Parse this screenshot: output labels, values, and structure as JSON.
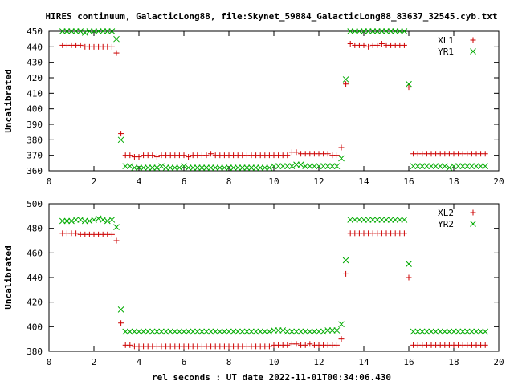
{
  "chart_data": [
    {
      "type": "scatter",
      "title": "HIRES continuum, GalacticLong88, file:Skynet_59884_GalacticLong88_83637_32545.cyb.txt",
      "ylabel": "Uncalibrated",
      "xlim": [
        0,
        20
      ],
      "ylim": [
        360,
        450
      ],
      "xticks": [
        0,
        2,
        4,
        6,
        8,
        10,
        12,
        14,
        16,
        18,
        20
      ],
      "yticks": [
        360,
        370,
        380,
        390,
        400,
        410,
        420,
        430,
        440,
        450
      ],
      "legend_position": "top-right",
      "grid": false,
      "series": [
        {
          "name": "XL1",
          "marker": "plus",
          "color": "#cc0000",
          "x": [
            0.6,
            0.8,
            1.0,
            1.2,
            1.4,
            1.6,
            1.8,
            2.0,
            2.2,
            2.4,
            2.6,
            2.8,
            3.0,
            3.2,
            3.4,
            3.6,
            3.8,
            4.0,
            4.2,
            4.4,
            4.6,
            4.8,
            5.0,
            5.2,
            5.4,
            5.6,
            5.8,
            6.0,
            6.2,
            6.4,
            6.6,
            6.8,
            7.0,
            7.2,
            7.4,
            7.6,
            7.8,
            8.0,
            8.2,
            8.4,
            8.6,
            8.8,
            9.0,
            9.2,
            9.4,
            9.6,
            9.8,
            10.0,
            10.2,
            10.4,
            10.6,
            10.8,
            11.0,
            11.2,
            11.4,
            11.6,
            11.8,
            12.0,
            12.2,
            12.4,
            12.6,
            12.8,
            13.0,
            13.2,
            13.4,
            13.6,
            13.8,
            14.0,
            14.2,
            14.4,
            14.6,
            14.8,
            15.0,
            15.2,
            15.4,
            15.6,
            15.8,
            16.0,
            16.2,
            16.4,
            16.6,
            16.8,
            17.0,
            17.2,
            17.4,
            17.6,
            17.8,
            18.0,
            18.2,
            18.4,
            18.6,
            18.8,
            19.0,
            19.2,
            19.4
          ],
          "y": [
            441,
            441,
            441,
            441,
            441,
            440,
            440,
            440,
            440,
            440,
            440,
            440,
            436,
            384,
            370,
            370,
            369,
            369,
            370,
            370,
            370,
            369,
            370,
            370,
            370,
            370,
            370,
            370,
            369,
            370,
            370,
            370,
            370,
            371,
            370,
            370,
            370,
            370,
            370,
            370,
            370,
            370,
            370,
            370,
            370,
            370,
            370,
            370,
            370,
            370,
            370,
            372,
            372,
            371,
            371,
            371,
            371,
            371,
            371,
            371,
            370,
            370,
            375,
            416,
            442,
            441,
            441,
            441,
            440,
            441,
            441,
            442,
            441,
            441,
            441,
            441,
            441,
            414,
            371,
            371,
            371,
            371,
            371,
            371,
            371,
            371,
            371,
            371,
            371,
            371,
            371,
            371,
            371,
            371,
            371
          ]
        },
        {
          "name": "YR1",
          "marker": "cross",
          "color": "#00aa00",
          "x": [
            0.6,
            0.8,
            1.0,
            1.2,
            1.4,
            1.6,
            1.8,
            2.0,
            2.2,
            2.4,
            2.6,
            2.8,
            3.0,
            3.2,
            3.4,
            3.6,
            3.8,
            4.0,
            4.2,
            4.4,
            4.6,
            4.8,
            5.0,
            5.2,
            5.4,
            5.6,
            5.8,
            6.0,
            6.2,
            6.4,
            6.6,
            6.8,
            7.0,
            7.2,
            7.4,
            7.6,
            7.8,
            8.0,
            8.2,
            8.4,
            8.6,
            8.8,
            9.0,
            9.2,
            9.4,
            9.6,
            9.8,
            10.0,
            10.2,
            10.4,
            10.6,
            10.8,
            11.0,
            11.2,
            11.4,
            11.6,
            11.8,
            12.0,
            12.2,
            12.4,
            12.6,
            12.8,
            13.0,
            13.2,
            13.4,
            13.6,
            13.8,
            14.0,
            14.2,
            14.4,
            14.6,
            14.8,
            15.0,
            15.2,
            15.4,
            15.6,
            15.8,
            16.0,
            16.2,
            16.4,
            16.6,
            16.8,
            17.0,
            17.2,
            17.4,
            17.6,
            17.8,
            18.0,
            18.2,
            18.4,
            18.6,
            18.8,
            19.0,
            19.2,
            19.4
          ],
          "y": [
            450,
            450,
            450,
            450,
            450,
            449,
            450,
            450,
            450,
            450,
            450,
            450,
            445,
            380,
            363,
            363,
            362,
            362,
            362,
            362,
            362,
            362,
            363,
            362,
            362,
            362,
            362,
            363,
            362,
            362,
            362,
            362,
            362,
            362,
            362,
            362,
            362,
            362,
            362,
            362,
            362,
            362,
            362,
            362,
            362,
            362,
            362,
            363,
            363,
            363,
            363,
            363,
            364,
            364,
            363,
            363,
            363,
            363,
            363,
            363,
            363,
            363,
            368,
            419,
            450,
            450,
            450,
            450,
            450,
            450,
            450,
            450,
            450,
            450,
            450,
            450,
            450,
            416,
            363,
            363,
            363,
            363,
            363,
            363,
            363,
            363,
            362,
            363,
            363,
            363,
            363,
            363,
            363,
            363,
            363
          ]
        }
      ]
    },
    {
      "type": "scatter",
      "ylabel": "Uncalibrated",
      "xlabel": "rel seconds : UT date 2022-11-01T00:34:06.430",
      "xlim": [
        0,
        20
      ],
      "ylim": [
        380,
        500
      ],
      "xticks": [
        0,
        2,
        4,
        6,
        8,
        10,
        12,
        14,
        16,
        18,
        20
      ],
      "yticks": [
        380,
        400,
        420,
        440,
        460,
        480,
        500
      ],
      "legend_position": "top-right",
      "grid": false,
      "series": [
        {
          "name": "XL2",
          "marker": "plus",
          "color": "#cc0000",
          "x": [
            0.6,
            0.8,
            1.0,
            1.2,
            1.4,
            1.6,
            1.8,
            2.0,
            2.2,
            2.4,
            2.6,
            2.8,
            3.0,
            3.2,
            3.4,
            3.6,
            3.8,
            4.0,
            4.2,
            4.4,
            4.6,
            4.8,
            5.0,
            5.2,
            5.4,
            5.6,
            5.8,
            6.0,
            6.2,
            6.4,
            6.6,
            6.8,
            7.0,
            7.2,
            7.4,
            7.6,
            7.8,
            8.0,
            8.2,
            8.4,
            8.6,
            8.8,
            9.0,
            9.2,
            9.4,
            9.6,
            9.8,
            10.0,
            10.2,
            10.4,
            10.6,
            10.8,
            11.0,
            11.2,
            11.4,
            11.6,
            11.8,
            12.0,
            12.2,
            12.4,
            12.6,
            12.8,
            13.0,
            13.2,
            13.4,
            13.6,
            13.8,
            14.0,
            14.2,
            14.4,
            14.6,
            14.8,
            15.0,
            15.2,
            15.4,
            15.6,
            15.8,
            16.0,
            16.2,
            16.4,
            16.6,
            16.8,
            17.0,
            17.2,
            17.4,
            17.6,
            17.8,
            18.0,
            18.2,
            18.4,
            18.6,
            18.8,
            19.0,
            19.2,
            19.4
          ],
          "y": [
            476,
            476,
            476,
            476,
            475,
            475,
            475,
            475,
            475,
            475,
            475,
            475,
            470,
            403,
            385,
            385,
            384,
            384,
            384,
            384,
            384,
            384,
            384,
            384,
            384,
            384,
            384,
            384,
            384,
            384,
            384,
            384,
            384,
            384,
            384,
            384,
            384,
            384,
            384,
            384,
            384,
            384,
            384,
            384,
            384,
            384,
            384,
            385,
            385,
            385,
            385,
            386,
            386,
            385,
            385,
            386,
            385,
            385,
            385,
            385,
            385,
            385,
            390,
            443,
            476,
            476,
            476,
            476,
            476,
            476,
            476,
            476,
            476,
            476,
            476,
            476,
            476,
            440,
            385,
            385,
            385,
            385,
            385,
            385,
            385,
            385,
            385,
            385,
            385,
            385,
            385,
            385,
            385,
            385,
            385
          ]
        },
        {
          "name": "YR2",
          "marker": "cross",
          "color": "#00aa00",
          "x": [
            0.6,
            0.8,
            1.0,
            1.2,
            1.4,
            1.6,
            1.8,
            2.0,
            2.2,
            2.4,
            2.6,
            2.8,
            3.0,
            3.2,
            3.4,
            3.6,
            3.8,
            4.0,
            4.2,
            4.4,
            4.6,
            4.8,
            5.0,
            5.2,
            5.4,
            5.6,
            5.8,
            6.0,
            6.2,
            6.4,
            6.6,
            6.8,
            7.0,
            7.2,
            7.4,
            7.6,
            7.8,
            8.0,
            8.2,
            8.4,
            8.6,
            8.8,
            9.0,
            9.2,
            9.4,
            9.6,
            9.8,
            10.0,
            10.2,
            10.4,
            10.6,
            10.8,
            11.0,
            11.2,
            11.4,
            11.6,
            11.8,
            12.0,
            12.2,
            12.4,
            12.6,
            12.8,
            13.0,
            13.2,
            13.4,
            13.6,
            13.8,
            14.0,
            14.2,
            14.4,
            14.6,
            14.8,
            15.0,
            15.2,
            15.4,
            15.6,
            15.8,
            16.0,
            16.2,
            16.4,
            16.6,
            16.8,
            17.0,
            17.2,
            17.4,
            17.6,
            17.8,
            18.0,
            18.2,
            18.4,
            18.6,
            18.8,
            19.0,
            19.2,
            19.4
          ],
          "y": [
            486,
            486,
            486,
            487,
            487,
            486,
            486,
            487,
            488,
            487,
            486,
            487,
            481,
            414,
            396,
            396,
            396,
            396,
            396,
            396,
            396,
            396,
            396,
            396,
            396,
            396,
            396,
            396,
            396,
            396,
            396,
            396,
            396,
            396,
            396,
            396,
            396,
            396,
            396,
            396,
            396,
            396,
            396,
            396,
            396,
            396,
            396,
            397,
            397,
            397,
            396,
            396,
            396,
            396,
            396,
            396,
            396,
            396,
            396,
            397,
            397,
            397,
            402,
            454,
            487,
            487,
            487,
            487,
            487,
            487,
            487,
            487,
            487,
            487,
            487,
            487,
            487,
            451,
            396,
            396,
            396,
            396,
            396,
            396,
            396,
            396,
            396,
            396,
            396,
            396,
            396,
            396,
            396,
            396,
            396
          ]
        }
      ]
    }
  ]
}
